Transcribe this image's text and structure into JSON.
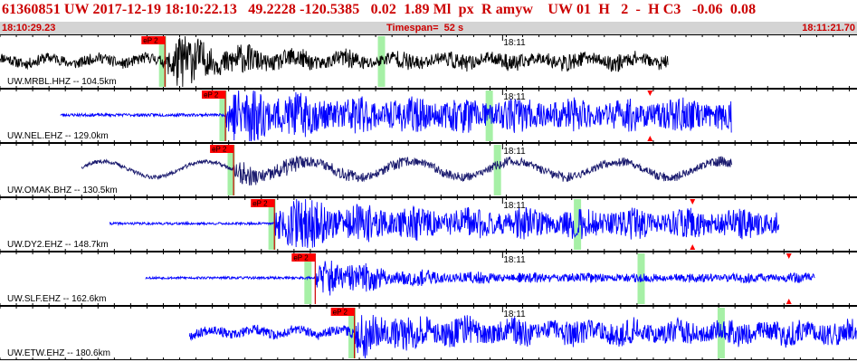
{
  "header": {
    "event_line": "61360851 UW 2017-12-19 18:10:22.13   49.2228 -120.5385   0.02  1.89 Ml  px  R amyw    UW 01  H   2  -  H C3   -0.06  0.08",
    "start_time": "18:10:29.23",
    "timespan": "Timespan=  52 s",
    "end_time": "18:11:21.70"
  },
  "colors": {
    "title_red": "#cc0000",
    "timebar_gray": "#d4d4d4",
    "pick_box": "#ff0000",
    "pick_line": "#cc0000",
    "spectral_green": "#a6f0a6",
    "trace_black": "#000000",
    "trace_blue": "#0000ff",
    "trace_navy": "#1a1a6e"
  },
  "axis": {
    "start_sec": 0,
    "end_sec": 52.47,
    "minute_tick_sec": 30.77,
    "minute_tick_label": "18:11",
    "minor_tick_step_sec": 1
  },
  "channels": [
    {
      "label": "UW.MRBL.HHZ -- 104.5km",
      "color": "#000000",
      "pick_label": "eP 2",
      "pick_sec": 10.1,
      "data_start_sec": 0,
      "data_end_sec": 40.9,
      "green_marks_sec": [
        9.9,
        23.3
      ],
      "noise_amp": 0.22,
      "event_amp": 0.95,
      "coda_amp": 0.3,
      "swell_amp": 0.12,
      "swell_period": 3.0,
      "seed": 11,
      "triangles": []
    },
    {
      "label": "UW.NEL.EHZ -- 129.0km",
      "color": "#0000ff",
      "pick_label": "eP 2",
      "pick_sec": 13.8,
      "data_start_sec": 3.7,
      "data_end_sec": 44.8,
      "green_marks_sec": [
        13.6,
        29.9
      ],
      "noise_amp": 0.06,
      "event_amp": 0.75,
      "coda_amp": 0.62,
      "swell_amp": 0.0,
      "swell_period": 2.0,
      "seed": 23,
      "triangles": [
        {
          "sec": 39.8,
          "dir": "both"
        }
      ]
    },
    {
      "label": "UW.OMAK.BHZ -- 130.5km",
      "color": "#1a1a6e",
      "pick_label": "eP 2",
      "pick_sec": 14.3,
      "data_start_sec": 5.0,
      "data_end_sec": 44.8,
      "green_marks_sec": [
        14.1,
        30.4
      ],
      "noise_amp": 0.08,
      "event_amp": 0.35,
      "coda_amp": 0.18,
      "swell_amp": 0.32,
      "swell_period": 6.3,
      "seed": 37,
      "triangles": []
    },
    {
      "label": "UW.DY2.EHZ -- 148.7km",
      "color": "#0000ff",
      "pick_label": "eP 2",
      "pick_sec": 16.8,
      "data_start_sec": 6.7,
      "data_end_sec": 47.7,
      "green_marks_sec": [
        16.6,
        35.3
      ],
      "noise_amp": 0.05,
      "event_amp": 0.75,
      "coda_amp": 0.55,
      "swell_amp": 0.0,
      "swell_period": 2.0,
      "seed": 41,
      "triangles": [
        {
          "sec": 42.4,
          "dir": "both"
        }
      ]
    },
    {
      "label": "UW.SLF.EHZ -- 162.6km",
      "color": "#0000ff",
      "pick_label": "eP 2",
      "pick_sec": 19.3,
      "data_start_sec": 8.9,
      "data_end_sec": 49.9,
      "green_marks_sec": [
        18.8,
        39.2
      ],
      "noise_amp": 0.05,
      "event_amp": 0.85,
      "coda_amp": 0.18,
      "swell_amp": 0.0,
      "swell_period": 2.0,
      "seed": 53,
      "triangles": [
        {
          "sec": 48.3,
          "dir": "both"
        }
      ]
    },
    {
      "label": "UW.ETW.EHZ -- 180.6km",
      "color": "#0000ff",
      "pick_label": "eP 2",
      "pick_sec": 21.7,
      "data_start_sec": 11.6,
      "data_end_sec": 52.47,
      "green_marks_sec": [
        21.5,
        44.1
      ],
      "noise_amp": 0.2,
      "event_amp": 0.6,
      "coda_amp": 0.45,
      "swell_amp": 0.12,
      "swell_period": 2.6,
      "seed": 67,
      "triangles": []
    }
  ]
}
